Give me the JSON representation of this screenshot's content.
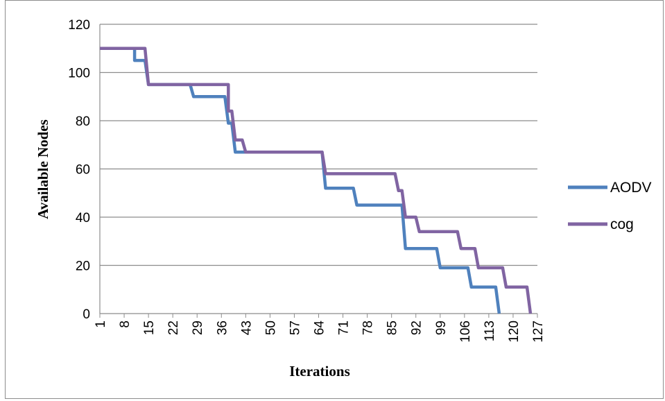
{
  "chart_data": {
    "type": "line",
    "title": "",
    "xlabel": "Iterations",
    "ylabel": "Available Nodes",
    "ylim": [
      0,
      120
    ],
    "y_ticks": [
      0,
      20,
      40,
      60,
      80,
      100,
      120
    ],
    "x_range": [
      1,
      127
    ],
    "x_tick_labels": [
      "1",
      "8",
      "15",
      "22",
      "29",
      "36",
      "43",
      "50",
      "57",
      "64",
      "71",
      "78",
      "85",
      "92",
      "99",
      "106",
      "113",
      "120",
      "127"
    ],
    "grid": "horizontal",
    "legend_position": "right",
    "series": [
      {
        "name": "AODV",
        "color": "#4f81bd",
        "points": [
          [
            1,
            110
          ],
          [
            11,
            110
          ],
          [
            11,
            105
          ],
          [
            14,
            105
          ],
          [
            15,
            95
          ],
          [
            27,
            95
          ],
          [
            28,
            90
          ],
          [
            37,
            90
          ],
          [
            38,
            79
          ],
          [
            39,
            79
          ],
          [
            40,
            67
          ],
          [
            65,
            67
          ],
          [
            66,
            52
          ],
          [
            74,
            52
          ],
          [
            75,
            45
          ],
          [
            88,
            45
          ],
          [
            89,
            27
          ],
          [
            98,
            27
          ],
          [
            99,
            19
          ],
          [
            107,
            19
          ],
          [
            108,
            11
          ],
          [
            115,
            11
          ],
          [
            116,
            0
          ]
        ]
      },
      {
        "name": "cog",
        "color": "#8064a2",
        "points": [
          [
            1,
            110
          ],
          [
            14,
            110
          ],
          [
            15,
            95
          ],
          [
            38,
            95
          ],
          [
            38,
            84
          ],
          [
            39,
            84
          ],
          [
            40,
            72
          ],
          [
            42,
            72
          ],
          [
            43,
            67
          ],
          [
            65,
            67
          ],
          [
            66,
            58
          ],
          [
            86,
            58
          ],
          [
            87,
            51
          ],
          [
            88,
            51
          ],
          [
            89,
            40
          ],
          [
            92,
            40
          ],
          [
            93,
            34
          ],
          [
            104,
            34
          ],
          [
            105,
            27
          ],
          [
            109,
            27
          ],
          [
            110,
            19
          ],
          [
            117,
            19
          ],
          [
            118,
            11
          ],
          [
            124,
            11
          ],
          [
            125,
            0
          ]
        ]
      }
    ]
  }
}
